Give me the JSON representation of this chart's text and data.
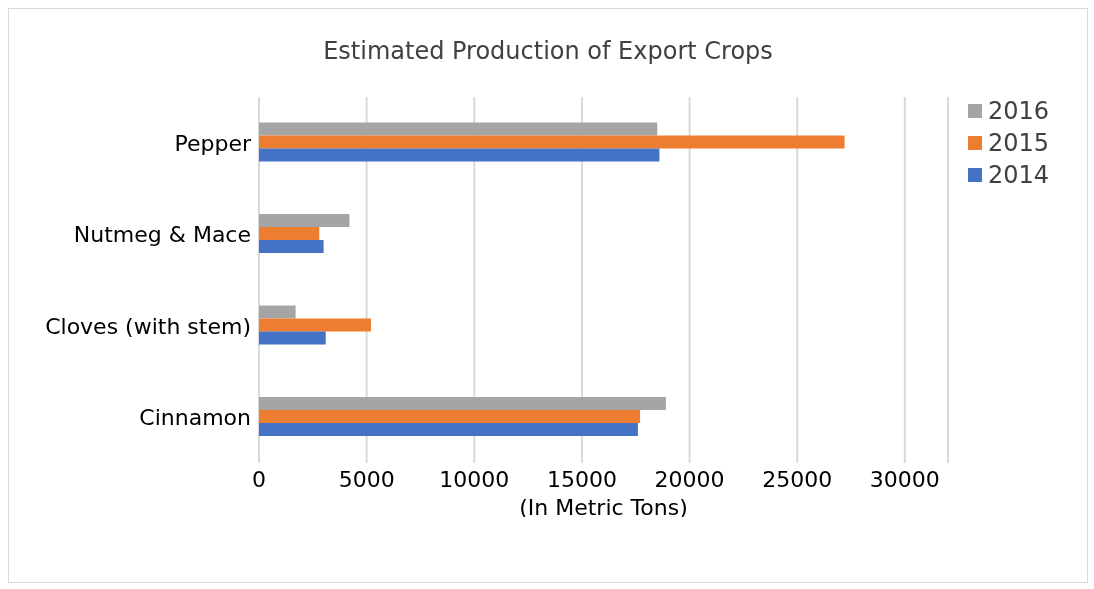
{
  "chart_data": {
    "type": "bar",
    "orientation": "horizontal",
    "title": "Estimated Production of Export Crops",
    "xlabel": "(In Metric Tons)",
    "categories": [
      "Pepper",
      "Nutmeg & Mace",
      "Cloves (with stem)",
      "Cinnamon"
    ],
    "series": [
      {
        "name": "2016",
        "color": "#a5a5a5",
        "values": [
          18500,
          4200,
          1700,
          18900
        ]
      },
      {
        "name": "2015",
        "color": "#ed7d31",
        "values": [
          27200,
          2800,
          5200,
          17700
        ]
      },
      {
        "name": "2014",
        "color": "#4472c4",
        "values": [
          18600,
          3000,
          3100,
          17600
        ]
      }
    ],
    "xlim": [
      0,
      32000
    ],
    "xticks": [
      0,
      5000,
      10000,
      15000,
      20000,
      25000,
      30000
    ],
    "grid": "x",
    "legend": "top right"
  }
}
